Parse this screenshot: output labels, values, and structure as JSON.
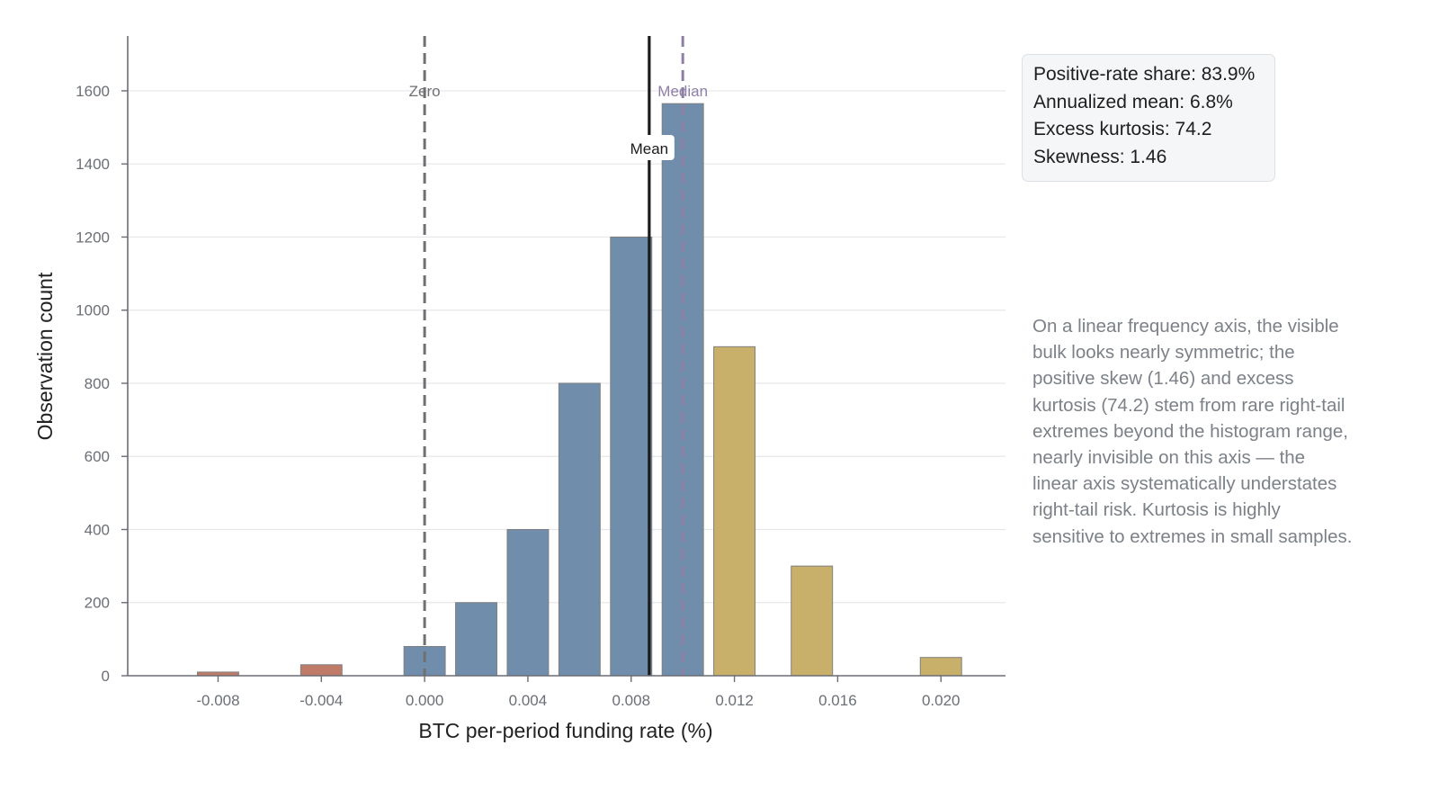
{
  "chart_data": {
    "type": "bar",
    "title": "",
    "xlabel": "BTC per-period funding rate (%)",
    "ylabel": "Observation count",
    "xlim": [
      -0.0115,
      0.0225
    ],
    "ylim": [
      0,
      1750
    ],
    "x_ticks": [
      "-0.008",
      "-0.004",
      "0.000",
      "0.004",
      "0.008",
      "0.012",
      "0.016",
      "0.020"
    ],
    "y_ticks": [
      "0",
      "200",
      "400",
      "600",
      "800",
      "1000",
      "1200",
      "1400",
      "1600"
    ],
    "grid": "horizontal",
    "bar_width": 0.0016,
    "bars": [
      {
        "x": -0.008,
        "value": 10,
        "group": "negative"
      },
      {
        "x": -0.004,
        "value": 30,
        "group": "negative"
      },
      {
        "x": 0.0,
        "value": 80,
        "group": "core"
      },
      {
        "x": 0.002,
        "value": 200,
        "group": "core"
      },
      {
        "x": 0.004,
        "value": 400,
        "group": "core"
      },
      {
        "x": 0.006,
        "value": 800,
        "group": "core"
      },
      {
        "x": 0.008,
        "value": 1200,
        "group": "core"
      },
      {
        "x": 0.01,
        "value": 1565,
        "group": "core"
      },
      {
        "x": 0.012,
        "value": 900,
        "group": "tail"
      },
      {
        "x": 0.015,
        "value": 300,
        "group": "tail"
      },
      {
        "x": 0.02,
        "value": 50,
        "group": "tail"
      }
    ],
    "group_colors": {
      "negative": "#c07a68",
      "core": "#708dab",
      "tail": "#c8af6a"
    },
    "reference_lines": [
      {
        "name": "zero",
        "label": "Zero",
        "x": 0.0,
        "style": "dashed",
        "color": "#6f6f74"
      },
      {
        "name": "mean",
        "label": "Mean",
        "x": 0.0087,
        "style": "solid",
        "color": "#1b1b1b"
      },
      {
        "name": "median",
        "label": "Median",
        "x": 0.01,
        "style": "dashed",
        "color": "#8f7fa6"
      }
    ]
  },
  "stats_box": {
    "lines": [
      "Positive-rate share: 83.9%",
      "Annualized mean: 6.8%",
      "Excess kurtosis: 74.2",
      "Skewness: 1.46"
    ]
  },
  "note": {
    "lines": [
      "On a linear frequency axis, the visible",
      "bulk looks nearly symmetric; the",
      "positive skew (1.46) and excess",
      "kurtosis (74.2) stem from rare right-tail",
      "extremes beyond the histogram range,",
      "nearly invisible on this axis — the",
      "linear axis systematically understates",
      "right-tail risk. Kurtosis is highly",
      "sensitive to extremes in small samples."
    ]
  }
}
